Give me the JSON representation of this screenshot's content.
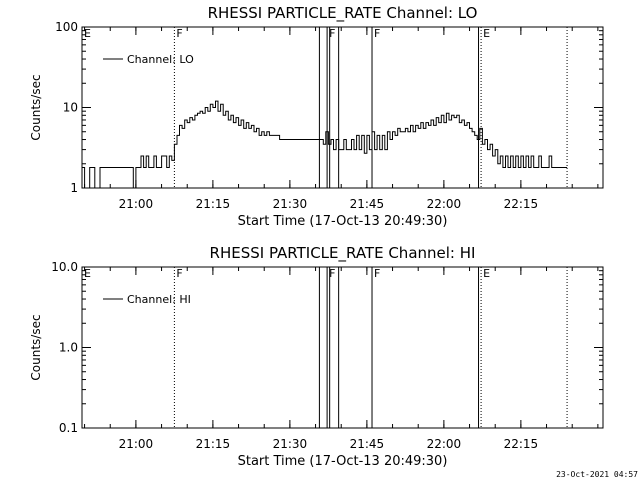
{
  "footer": {
    "timestamp": "23-Oct-2021 04:57"
  },
  "chart_data": [
    {
      "type": "line",
      "title": "RHESSI PARTICLE_RATE Channel: LO",
      "xlabel": "Start Time (17-Oct-13 20:49:30)",
      "ylabel": "Counts/sec",
      "yscale": "log",
      "ylim": [
        1,
        100
      ],
      "xlim": [
        "20:49:30",
        "22:31:00"
      ],
      "x_ticks": [
        "21:00",
        "21:15",
        "21:30",
        "21:45",
        "22:00",
        "22:15"
      ],
      "y_ticks": [
        "1",
        "10",
        "100"
      ],
      "legend": {
        "label": "Channel: LO",
        "position": "top-left"
      },
      "series": [
        {
          "name": "Channel: LO",
          "points": [
            [
              "20:49:30",
              1.8
            ],
            [
              "20:50:00",
              1.0
            ],
            [
              "20:51:00",
              1.8
            ],
            [
              "20:52:00",
              1.0
            ],
            [
              "20:53:00",
              1.8
            ],
            [
              "20:59:00",
              1.8
            ],
            [
              "20:59:30",
              1.0
            ],
            [
              "21:00:00",
              1.8
            ],
            [
              "21:00:30",
              1.8
            ],
            [
              "21:01:00",
              2.5
            ],
            [
              "21:01:30",
              1.8
            ],
            [
              "21:02:00",
              2.5
            ],
            [
              "21:02:30",
              1.8
            ],
            [
              "21:03:00",
              1.8
            ],
            [
              "21:03:30",
              2.5
            ],
            [
              "21:04:00",
              1.8
            ],
            [
              "21:05:00",
              2.5
            ],
            [
              "21:05:30",
              2.5
            ],
            [
              "21:06:00",
              1.8
            ],
            [
              "21:06:30",
              2.5
            ],
            [
              "21:07:00",
              2.2
            ],
            [
              "21:07:30",
              3.5
            ],
            [
              "21:08:00",
              4.5
            ],
            [
              "21:08:30",
              6.0
            ],
            [
              "21:09:00",
              5.5
            ],
            [
              "21:09:30",
              7.0
            ],
            [
              "21:10:00",
              6.5
            ],
            [
              "21:10:30",
              7.5
            ],
            [
              "21:11:00",
              7.0
            ],
            [
              "21:11:30",
              8.0
            ],
            [
              "21:12:00",
              8.5
            ],
            [
              "21:12:30",
              9.0
            ],
            [
              "21:13:00",
              8.5
            ],
            [
              "21:13:30",
              10.0
            ],
            [
              "21:14:00",
              9.0
            ],
            [
              "21:14:30",
              11.0
            ],
            [
              "21:15:00",
              10.0
            ],
            [
              "21:15:30",
              12.0
            ],
            [
              "21:16:00",
              9.0
            ],
            [
              "21:16:30",
              11.0
            ],
            [
              "21:17:00",
              8.0
            ],
            [
              "21:17:30",
              9.0
            ],
            [
              "21:18:00",
              7.0
            ],
            [
              "21:18:30",
              8.0
            ],
            [
              "21:19:00",
              6.5
            ],
            [
              "21:19:30",
              7.5
            ],
            [
              "21:20:00",
              6.0
            ],
            [
              "21:20:30",
              7.0
            ],
            [
              "21:21:00",
              5.5
            ],
            [
              "21:21:30",
              6.5
            ],
            [
              "21:22:00",
              5.5
            ],
            [
              "21:22:30",
              6.0
            ],
            [
              "21:23:00",
              5.0
            ],
            [
              "21:23:30",
              5.5
            ],
            [
              "21:24:00",
              4.5
            ],
            [
              "21:24:30",
              5.0
            ],
            [
              "21:25:00",
              4.5
            ],
            [
              "21:25:30",
              5.0
            ],
            [
              "21:26:00",
              4.5
            ],
            [
              "21:27:00",
              4.5
            ],
            [
              "21:28:00",
              4.0
            ],
            [
              "21:29:00",
              4.0
            ],
            [
              "21:30:00",
              4.0
            ],
            [
              "21:31:00",
              4.0
            ],
            [
              "21:32:00",
              4.0
            ],
            [
              "21:33:00",
              4.0
            ],
            [
              "21:34:00",
              4.0
            ],
            [
              "21:35:00",
              4.0
            ],
            [
              "21:36:00",
              4.0
            ],
            [
              "21:36:30",
              3.5
            ],
            [
              "21:37:00",
              5.0
            ],
            [
              "21:37:30",
              3.5
            ],
            [
              "21:38:00",
              4.0
            ],
            [
              "21:38:30",
              3.0
            ],
            [
              "21:39:00",
              4.0
            ],
            [
              "21:39:30",
              3.0
            ],
            [
              "21:40:00",
              3.0
            ],
            [
              "21:40:30",
              4.0
            ],
            [
              "21:41:00",
              3.0
            ],
            [
              "21:41:30",
              3.0
            ],
            [
              "21:42:00",
              4.0
            ],
            [
              "21:42:30",
              3.0
            ],
            [
              "21:43:00",
              4.5
            ],
            [
              "21:43:30",
              3.0
            ],
            [
              "21:44:00",
              4.5
            ],
            [
              "21:44:30",
              2.7
            ],
            [
              "21:45:00",
              4.5
            ],
            [
              "21:45:30",
              3.0
            ],
            [
              "21:46:00",
              5.0
            ],
            [
              "21:46:30",
              3.0
            ],
            [
              "21:47:00",
              4.5
            ],
            [
              "21:47:30",
              3.0
            ],
            [
              "21:48:00",
              4.5
            ],
            [
              "21:48:30",
              3.0
            ],
            [
              "21:49:00",
              5.0
            ],
            [
              "21:49:30",
              4.0
            ],
            [
              "21:50:00",
              5.0
            ],
            [
              "21:50:30",
              4.5
            ],
            [
              "21:51:00",
              5.5
            ],
            [
              "21:51:30",
              5.0
            ],
            [
              "21:52:00",
              5.0
            ],
            [
              "21:52:30",
              5.5
            ],
            [
              "21:53:00",
              5.0
            ],
            [
              "21:53:30",
              6.0
            ],
            [
              "21:54:00",
              5.0
            ],
            [
              "21:54:30",
              6.0
            ],
            [
              "21:55:00",
              5.5
            ],
            [
              "21:55:30",
              6.5
            ],
            [
              "21:56:00",
              5.5
            ],
            [
              "21:56:30",
              6.5
            ],
            [
              "21:57:00",
              6.0
            ],
            [
              "21:57:30",
              7.0
            ],
            [
              "21:58:00",
              6.0
            ],
            [
              "21:58:30",
              7.5
            ],
            [
              "21:59:00",
              6.5
            ],
            [
              "21:59:30",
              8.0
            ],
            [
              "22:00:00",
              6.5
            ],
            [
              "22:00:30",
              8.5
            ],
            [
              "22:01:00",
              7.0
            ],
            [
              "22:01:30",
              8.0
            ],
            [
              "22:02:00",
              7.5
            ],
            [
              "22:02:30",
              8.0
            ],
            [
              "22:03:00",
              6.5
            ],
            [
              "22:03:30",
              7.0
            ],
            [
              "22:04:00",
              6.0
            ],
            [
              "22:04:30",
              6.5
            ],
            [
              "22:05:00",
              5.5
            ],
            [
              "22:05:30",
              5.0
            ],
            [
              "22:06:00",
              4.5
            ],
            [
              "22:06:30",
              4.0
            ],
            [
              "22:07:00",
              5.5
            ],
            [
              "22:07:30",
              3.5
            ],
            [
              "22:08:00",
              4.0
            ],
            [
              "22:08:30",
              3.0
            ],
            [
              "22:09:00",
              3.5
            ],
            [
              "22:09:30",
              2.5
            ],
            [
              "22:10:00",
              3.0
            ],
            [
              "22:10:30",
              2.0
            ],
            [
              "22:11:00",
              2.5
            ],
            [
              "22:11:30",
              1.8
            ],
            [
              "22:12:00",
              2.5
            ],
            [
              "22:12:30",
              1.8
            ],
            [
              "22:13:00",
              2.5
            ],
            [
              "22:13:30",
              1.8
            ],
            [
              "22:14:00",
              2.5
            ],
            [
              "22:14:30",
              1.8
            ],
            [
              "22:15:00",
              2.5
            ],
            [
              "22:15:30",
              1.8
            ],
            [
              "22:16:00",
              2.5
            ],
            [
              "22:16:30",
              1.8
            ],
            [
              "22:17:00",
              2.5
            ],
            [
              "22:17:30",
              1.8
            ],
            [
              "22:18:00",
              1.8
            ],
            [
              "22:18:30",
              2.5
            ],
            [
              "22:19:00",
              1.8
            ],
            [
              "22:20:00",
              1.8
            ],
            [
              "22:20:30",
              2.5
            ],
            [
              "22:21:00",
              1.8
            ],
            [
              "22:24:00",
              1.8
            ]
          ]
        }
      ],
      "markers": [
        {
          "label": "E",
          "time": "20:49:30",
          "style": "dotted"
        },
        {
          "label": "F",
          "time": "21:07:30",
          "style": "dotted"
        },
        {
          "label": "",
          "time": "21:35:45",
          "style": "solid"
        },
        {
          "label": "F",
          "time": "21:37:15",
          "style": "solid"
        },
        {
          "label": "",
          "time": "21:37:45",
          "style": "solid"
        },
        {
          "label": "",
          "time": "21:39:30",
          "style": "solid"
        },
        {
          "label": "F",
          "time": "21:46:00",
          "style": "solid"
        },
        {
          "label": "",
          "time": "22:06:45",
          "style": "solid"
        },
        {
          "label": "E",
          "time": "22:07:15",
          "style": "dotted"
        },
        {
          "label": "",
          "time": "22:24:00",
          "style": "dotted"
        }
      ]
    },
    {
      "type": "line",
      "title": "RHESSI PARTICLE_RATE Channel: HI",
      "xlabel": "Start Time (17-Oct-13 20:49:30)",
      "ylabel": "Counts/sec",
      "yscale": "log",
      "ylim": [
        0.1,
        10.0
      ],
      "xlim": [
        "20:49:30",
        "22:31:00"
      ],
      "x_ticks": [
        "21:00",
        "21:15",
        "21:30",
        "21:45",
        "22:00",
        "22:15"
      ],
      "y_ticks": [
        "0.1",
        "1.0",
        "10.0"
      ],
      "legend": {
        "label": "Channel: HI",
        "position": "top-left"
      },
      "series": [
        {
          "name": "Channel: HI",
          "points": []
        }
      ],
      "markers": [
        {
          "label": "E",
          "time": "20:49:30",
          "style": "dotted"
        },
        {
          "label": "F",
          "time": "21:07:30",
          "style": "dotted"
        },
        {
          "label": "",
          "time": "21:35:45",
          "style": "solid"
        },
        {
          "label": "F",
          "time": "21:37:15",
          "style": "solid"
        },
        {
          "label": "",
          "time": "21:37:45",
          "style": "solid"
        },
        {
          "label": "",
          "time": "21:39:30",
          "style": "solid"
        },
        {
          "label": "F",
          "time": "21:46:00",
          "style": "solid"
        },
        {
          "label": "",
          "time": "22:06:45",
          "style": "solid"
        },
        {
          "label": "E",
          "time": "22:07:15",
          "style": "dotted"
        },
        {
          "label": "",
          "time": "22:24:00",
          "style": "dotted"
        }
      ]
    }
  ]
}
